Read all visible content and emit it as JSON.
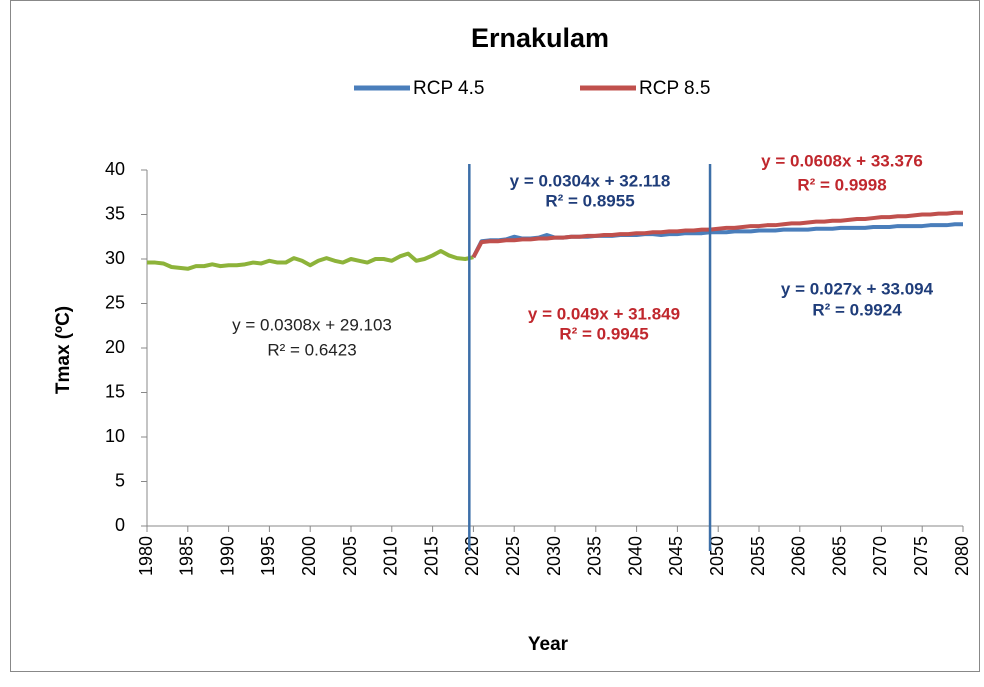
{
  "chart_data": {
    "type": "line",
    "title": "Ernakulam",
    "x_label": "Year",
    "y_label": "Tmax (ºC)",
    "xlim": [
      1980,
      2080
    ],
    "xticks": [
      1980,
      1985,
      1990,
      1995,
      2000,
      2005,
      2010,
      2015,
      2020,
      2025,
      2030,
      2035,
      2040,
      2045,
      2050,
      2055,
      2060,
      2065,
      2070,
      2075,
      2080
    ],
    "ylim": [
      0,
      40
    ],
    "yticks": [
      0,
      5,
      10,
      15,
      20,
      25,
      30,
      35,
      40
    ],
    "grid": false,
    "legend": "top",
    "reference_lines": [
      2019.5,
      2049
    ],
    "reference_line_color": "#3d6fa8",
    "series": [
      {
        "color": "#8db33a",
        "x": [
          1980,
          1981,
          1982,
          1983,
          1984,
          1985,
          1986,
          1987,
          1988,
          1989,
          1990,
          1991,
          1992,
          1993,
          1994,
          1995,
          1996,
          1997,
          1998,
          1999,
          2000,
          2001,
          2002,
          2003,
          2004,
          2005,
          2006,
          2007,
          2008,
          2009,
          2010,
          2011,
          2012,
          2013,
          2014,
          2015,
          2016,
          2017,
          2018,
          2019,
          2020
        ],
        "values": [
          29.6,
          29.6,
          29.5,
          29.1,
          29.0,
          28.9,
          29.2,
          29.2,
          29.4,
          29.2,
          29.3,
          29.3,
          29.4,
          29.6,
          29.5,
          29.8,
          29.6,
          29.6,
          30.1,
          29.8,
          29.3,
          29.8,
          30.1,
          29.8,
          29.6,
          30.0,
          29.8,
          29.6,
          30.0,
          30.0,
          29.8,
          30.3,
          30.6,
          29.8,
          30.0,
          30.4,
          30.9,
          30.4,
          30.1,
          30.0,
          30.2
        ]
      },
      {
        "name": "RCP 4.5",
        "color": "#4a7ebb",
        "x": [
          2020,
          2021,
          2022,
          2023,
          2024,
          2025,
          2026,
          2027,
          2028,
          2029,
          2030,
          2031,
          2032,
          2033,
          2034,
          2035,
          2036,
          2037,
          2038,
          2039,
          2040,
          2041,
          2042,
          2043,
          2044,
          2045,
          2046,
          2047,
          2048,
          2049,
          2050,
          2051,
          2052,
          2053,
          2054,
          2055,
          2056,
          2057,
          2058,
          2059,
          2060,
          2061,
          2062,
          2063,
          2064,
          2065,
          2066,
          2067,
          2068,
          2069,
          2070,
          2071,
          2072,
          2073,
          2074,
          2075,
          2076,
          2077,
          2078,
          2079,
          2080
        ],
        "values": [
          30.2,
          32.0,
          32.1,
          32.1,
          32.2,
          32.5,
          32.3,
          32.3,
          32.4,
          32.7,
          32.4,
          32.4,
          32.5,
          32.5,
          32.5,
          32.6,
          32.6,
          32.6,
          32.7,
          32.7,
          32.7,
          32.8,
          32.8,
          32.7,
          32.8,
          32.8,
          32.9,
          32.9,
          32.9,
          33.0,
          33.0,
          33.0,
          33.1,
          33.1,
          33.1,
          33.2,
          33.2,
          33.2,
          33.3,
          33.3,
          33.3,
          33.3,
          33.4,
          33.4,
          33.4,
          33.5,
          33.5,
          33.5,
          33.5,
          33.6,
          33.6,
          33.6,
          33.7,
          33.7,
          33.7,
          33.7,
          33.8,
          33.8,
          33.8,
          33.9,
          33.9
        ]
      },
      {
        "name": "RCP 8.5",
        "color": "#c0504d",
        "x": [
          2020,
          2021,
          2022,
          2023,
          2024,
          2025,
          2026,
          2027,
          2028,
          2029,
          2030,
          2031,
          2032,
          2033,
          2034,
          2035,
          2036,
          2037,
          2038,
          2039,
          2040,
          2041,
          2042,
          2043,
          2044,
          2045,
          2046,
          2047,
          2048,
          2049,
          2050,
          2051,
          2052,
          2053,
          2054,
          2055,
          2056,
          2057,
          2058,
          2059,
          2060,
          2061,
          2062,
          2063,
          2064,
          2065,
          2066,
          2067,
          2068,
          2069,
          2070,
          2071,
          2072,
          2073,
          2074,
          2075,
          2076,
          2077,
          2078,
          2079,
          2080
        ],
        "values": [
          30.2,
          31.9,
          32.0,
          32.0,
          32.1,
          32.1,
          32.2,
          32.2,
          32.3,
          32.3,
          32.4,
          32.4,
          32.5,
          32.5,
          32.6,
          32.6,
          32.7,
          32.7,
          32.8,
          32.8,
          32.9,
          32.9,
          33.0,
          33.0,
          33.1,
          33.1,
          33.2,
          33.2,
          33.3,
          33.3,
          33.4,
          33.5,
          33.5,
          33.6,
          33.7,
          33.7,
          33.8,
          33.8,
          33.9,
          34.0,
          34.0,
          34.1,
          34.2,
          34.2,
          34.3,
          34.3,
          34.4,
          34.5,
          34.5,
          34.6,
          34.7,
          34.7,
          34.8,
          34.8,
          34.9,
          35.0,
          35.0,
          35.1,
          35.1,
          35.2,
          35.2
        ]
      }
    ],
    "annotations": [
      {
        "lines": [
          "y = 0.0308x + 29.103",
          "R² = 0.6423"
        ],
        "color": "#222222"
      },
      {
        "lines": [
          "y = 0.0304x + 32.118",
          "R² = 0.8955"
        ],
        "color": "#1f3d7a"
      },
      {
        "lines": [
          "y = 0.0608x + 33.376",
          "R² = 0.9998"
        ],
        "color": "#c0272d"
      },
      {
        "lines": [
          "y = 0.049x + 31.849",
          "R² = 0.9945"
        ],
        "color": "#c0272d"
      },
      {
        "lines": [
          "y = 0.027x + 33.094",
          "R² = 0.9924"
        ],
        "color": "#1f3d7a"
      }
    ]
  }
}
